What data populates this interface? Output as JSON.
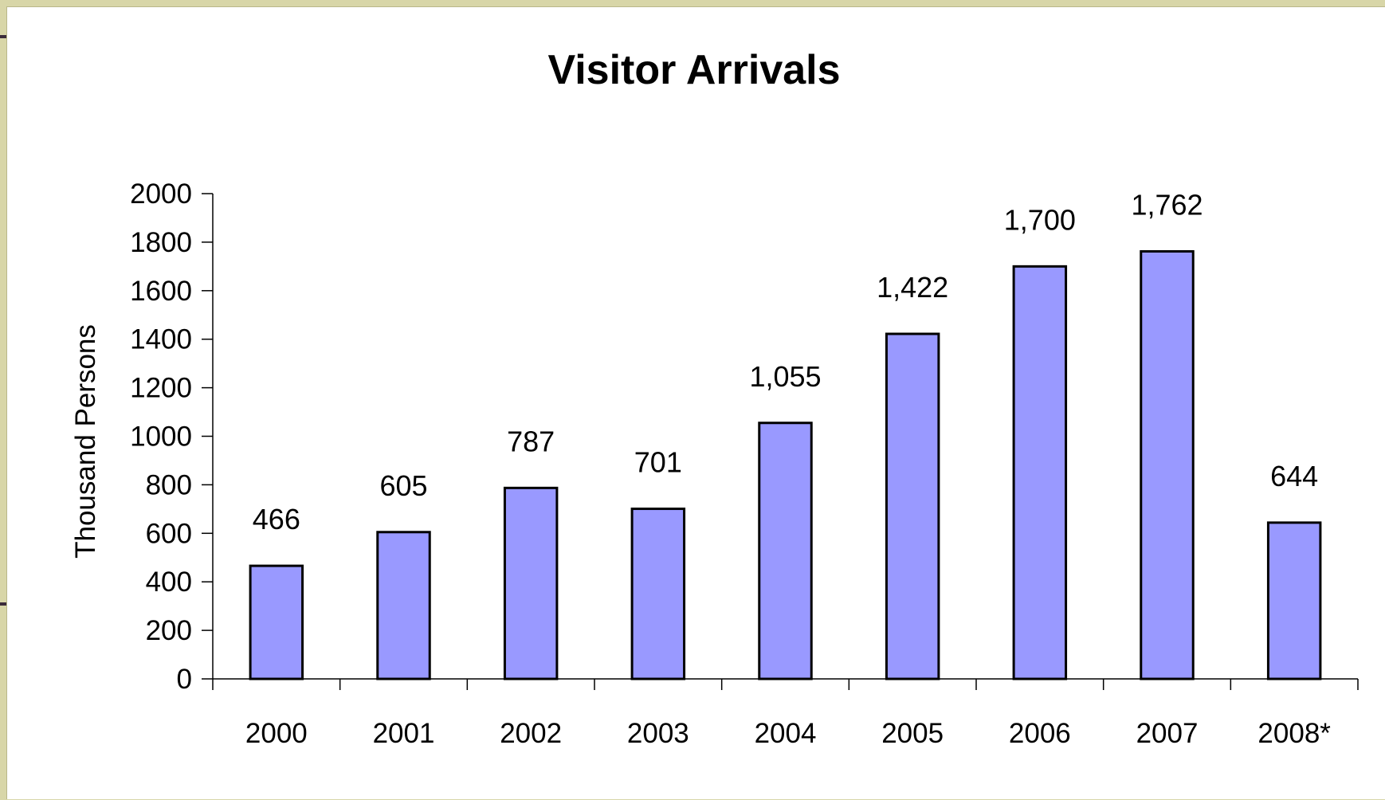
{
  "chart_data": {
    "type": "bar",
    "title": "Visitor Arrivals",
    "xlabel": "",
    "ylabel": "Thousand Persons",
    "categories": [
      "2000",
      "2001",
      "2002",
      "2003",
      "2004",
      "2005",
      "2006",
      "2007",
      "2008*"
    ],
    "values": [
      466,
      605,
      787,
      701,
      1055,
      1422,
      1700,
      1762,
      644
    ],
    "data_labels": [
      "466",
      "605",
      "787",
      "701",
      "1,055",
      "1,422",
      "1,700",
      "1,762",
      "644"
    ],
    "ylim": [
      0,
      2000
    ],
    "yticks": [
      0,
      200,
      400,
      600,
      800,
      1000,
      1200,
      1400,
      1600,
      1800,
      2000
    ],
    "ytick_labels": [
      "0",
      "200",
      "400",
      "600",
      "800",
      "1000",
      "1200",
      "1400",
      "1600",
      "1800",
      "2000"
    ],
    "grid": false,
    "legend": "none",
    "colors": {
      "bar_fill": "#9999ff",
      "bar_stroke": "#000000",
      "background": "#ffffff",
      "frame": "#d8d6a8"
    }
  }
}
